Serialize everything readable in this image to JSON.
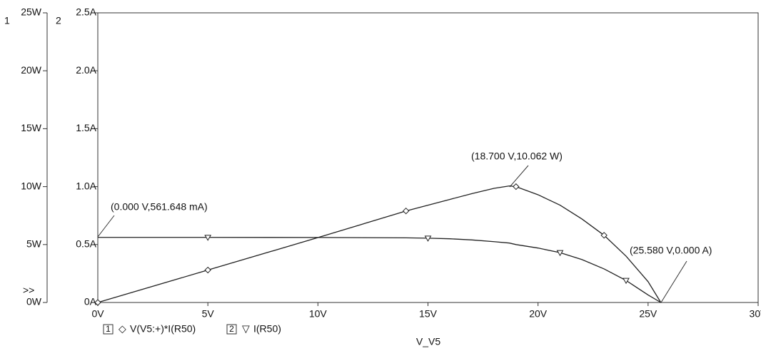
{
  "chart_data": {
    "type": "line",
    "y_axis_label": "1",
    "y2_axis_label": "2",
    "x_axis_label": "V_V5",
    "scroll_marker": ">>",
    "x": [
      0,
      5,
      10,
      14,
      15,
      16,
      17,
      18,
      18.7,
      19,
      20,
      21,
      22,
      23,
      24,
      25,
      25.58
    ],
    "series": [
      {
        "name": "V(V5:+)*I(R50)",
        "symbol": "◇",
        "color": "#222222",
        "axis": "y",
        "values": [
          0,
          2.8,
          5.6,
          7.9,
          8.4,
          8.9,
          9.4,
          9.85,
          10.062,
          10.0,
          9.3,
          8.4,
          7.2,
          5.8,
          4.0,
          1.8,
          0
        ]
      },
      {
        "name": "I(R50)",
        "symbol": "▽",
        "color": "#222222",
        "axis": "y2",
        "values": [
          0.562,
          0.562,
          0.561,
          0.558,
          0.555,
          0.55,
          0.54,
          0.525,
          0.513,
          0.5,
          0.47,
          0.43,
          0.37,
          0.29,
          0.19,
          0.065,
          0
        ]
      }
    ],
    "xlim": [
      0,
      30
    ],
    "xticks": [
      {
        "value": 0,
        "label": "0V"
      },
      {
        "value": 5,
        "label": "5V"
      },
      {
        "value": 10,
        "label": "10V"
      },
      {
        "value": 15,
        "label": "15V"
      },
      {
        "value": 20,
        "label": "20V"
      },
      {
        "value": 25,
        "label": "25V"
      },
      {
        "value": 30,
        "label": "30V"
      }
    ],
    "ylim": [
      0,
      25
    ],
    "yticks": [
      {
        "value": 0,
        "label": "0W"
      },
      {
        "value": 5,
        "label": "5W"
      },
      {
        "value": 10,
        "label": "10W"
      },
      {
        "value": 15,
        "label": "15W"
      },
      {
        "value": 20,
        "label": "20W"
      },
      {
        "value": 25,
        "label": "25W"
      }
    ],
    "y2lim": [
      0,
      2.5
    ],
    "y2ticks": [
      {
        "value": 0,
        "label": "0A"
      },
      {
        "value": 0.5,
        "label": "0.5A"
      },
      {
        "value": 1.0,
        "label": "1.0A"
      },
      {
        "value": 1.5,
        "label": "1.5A"
      },
      {
        "value": 2.0,
        "label": "2.0A"
      },
      {
        "value": 2.5,
        "label": "2.5A"
      }
    ],
    "annotations": [
      "(18.700 V,10.062 W)",
      "(0.000 V,561.648 mA)",
      "(25.580 V,0.000 A)"
    ]
  }
}
